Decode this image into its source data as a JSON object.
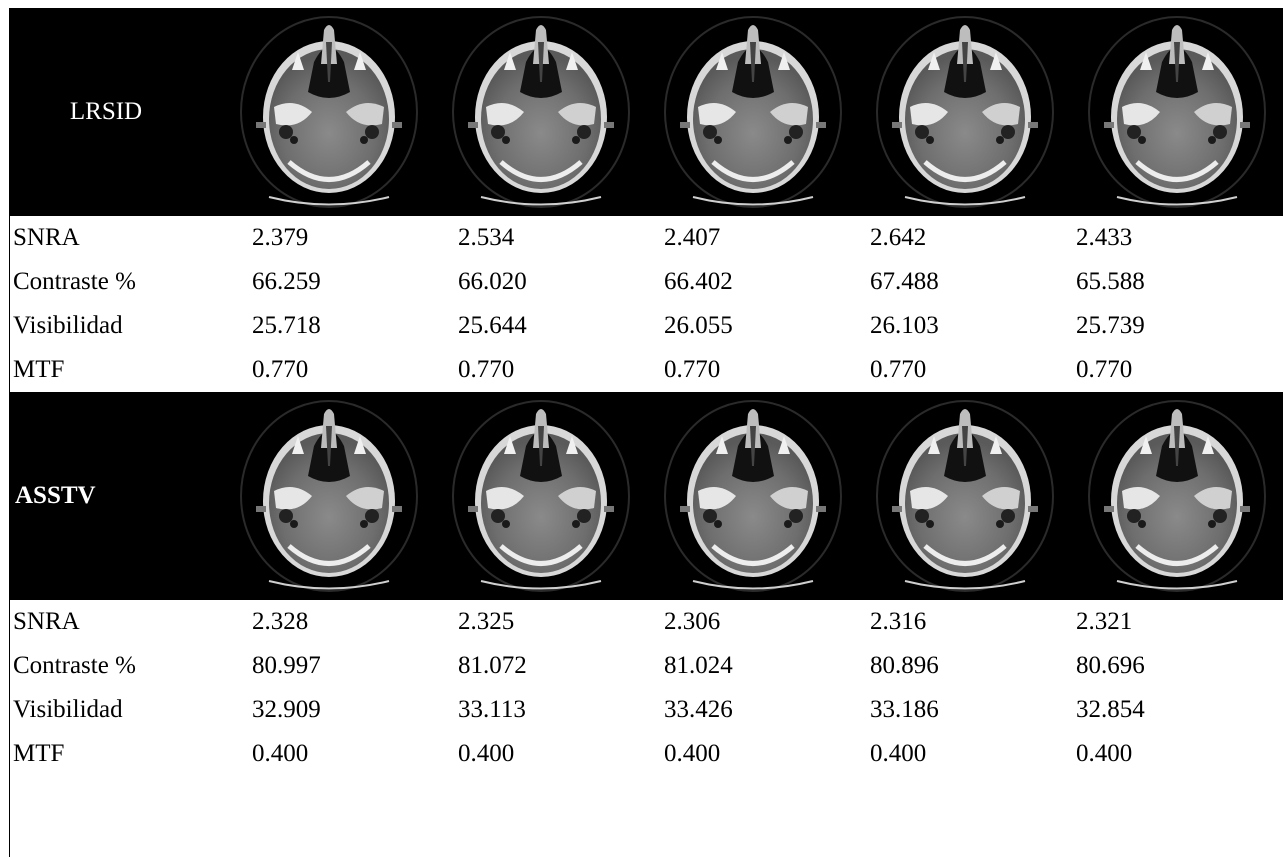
{
  "sections": [
    {
      "method": "LRSID",
      "method_bold": false,
      "rows": [
        {
          "label": "SNRA",
          "values": [
            "2.379",
            "2.534",
            "2.407",
            "2.642",
            "2.433"
          ]
        },
        {
          "label": "Contraste %",
          "values": [
            "66.259",
            "66.020",
            "66.402",
            "67.488",
            "65.588"
          ]
        },
        {
          "label": "Visibilidad",
          "values": [
            "25.718",
            "25.644",
            "26.055",
            "26.103",
            "25.739"
          ]
        },
        {
          "label": "MTF",
          "values": [
            "0.770",
            "0.770",
            "0.770",
            "0.770",
            "0.770"
          ]
        }
      ]
    },
    {
      "method": "ASSTV",
      "method_bold": true,
      "rows": [
        {
          "label": "SNRA",
          "values": [
            "2.328",
            "2.325",
            "2.306",
            "2.316",
            "2.321"
          ]
        },
        {
          "label": "Contraste %",
          "values": [
            "80.997",
            "81.072",
            "81.024",
            "80.896",
            "80.696"
          ]
        },
        {
          "label": "Visibilidad",
          "values": [
            "32.909",
            "33.113",
            "33.426",
            "33.186",
            "32.854"
          ]
        },
        {
          "label": "MTF",
          "values": [
            "0.400",
            "0.400",
            "0.400",
            "0.400",
            "0.400"
          ]
        }
      ]
    }
  ],
  "image_description": "axial-ct-head-scan"
}
